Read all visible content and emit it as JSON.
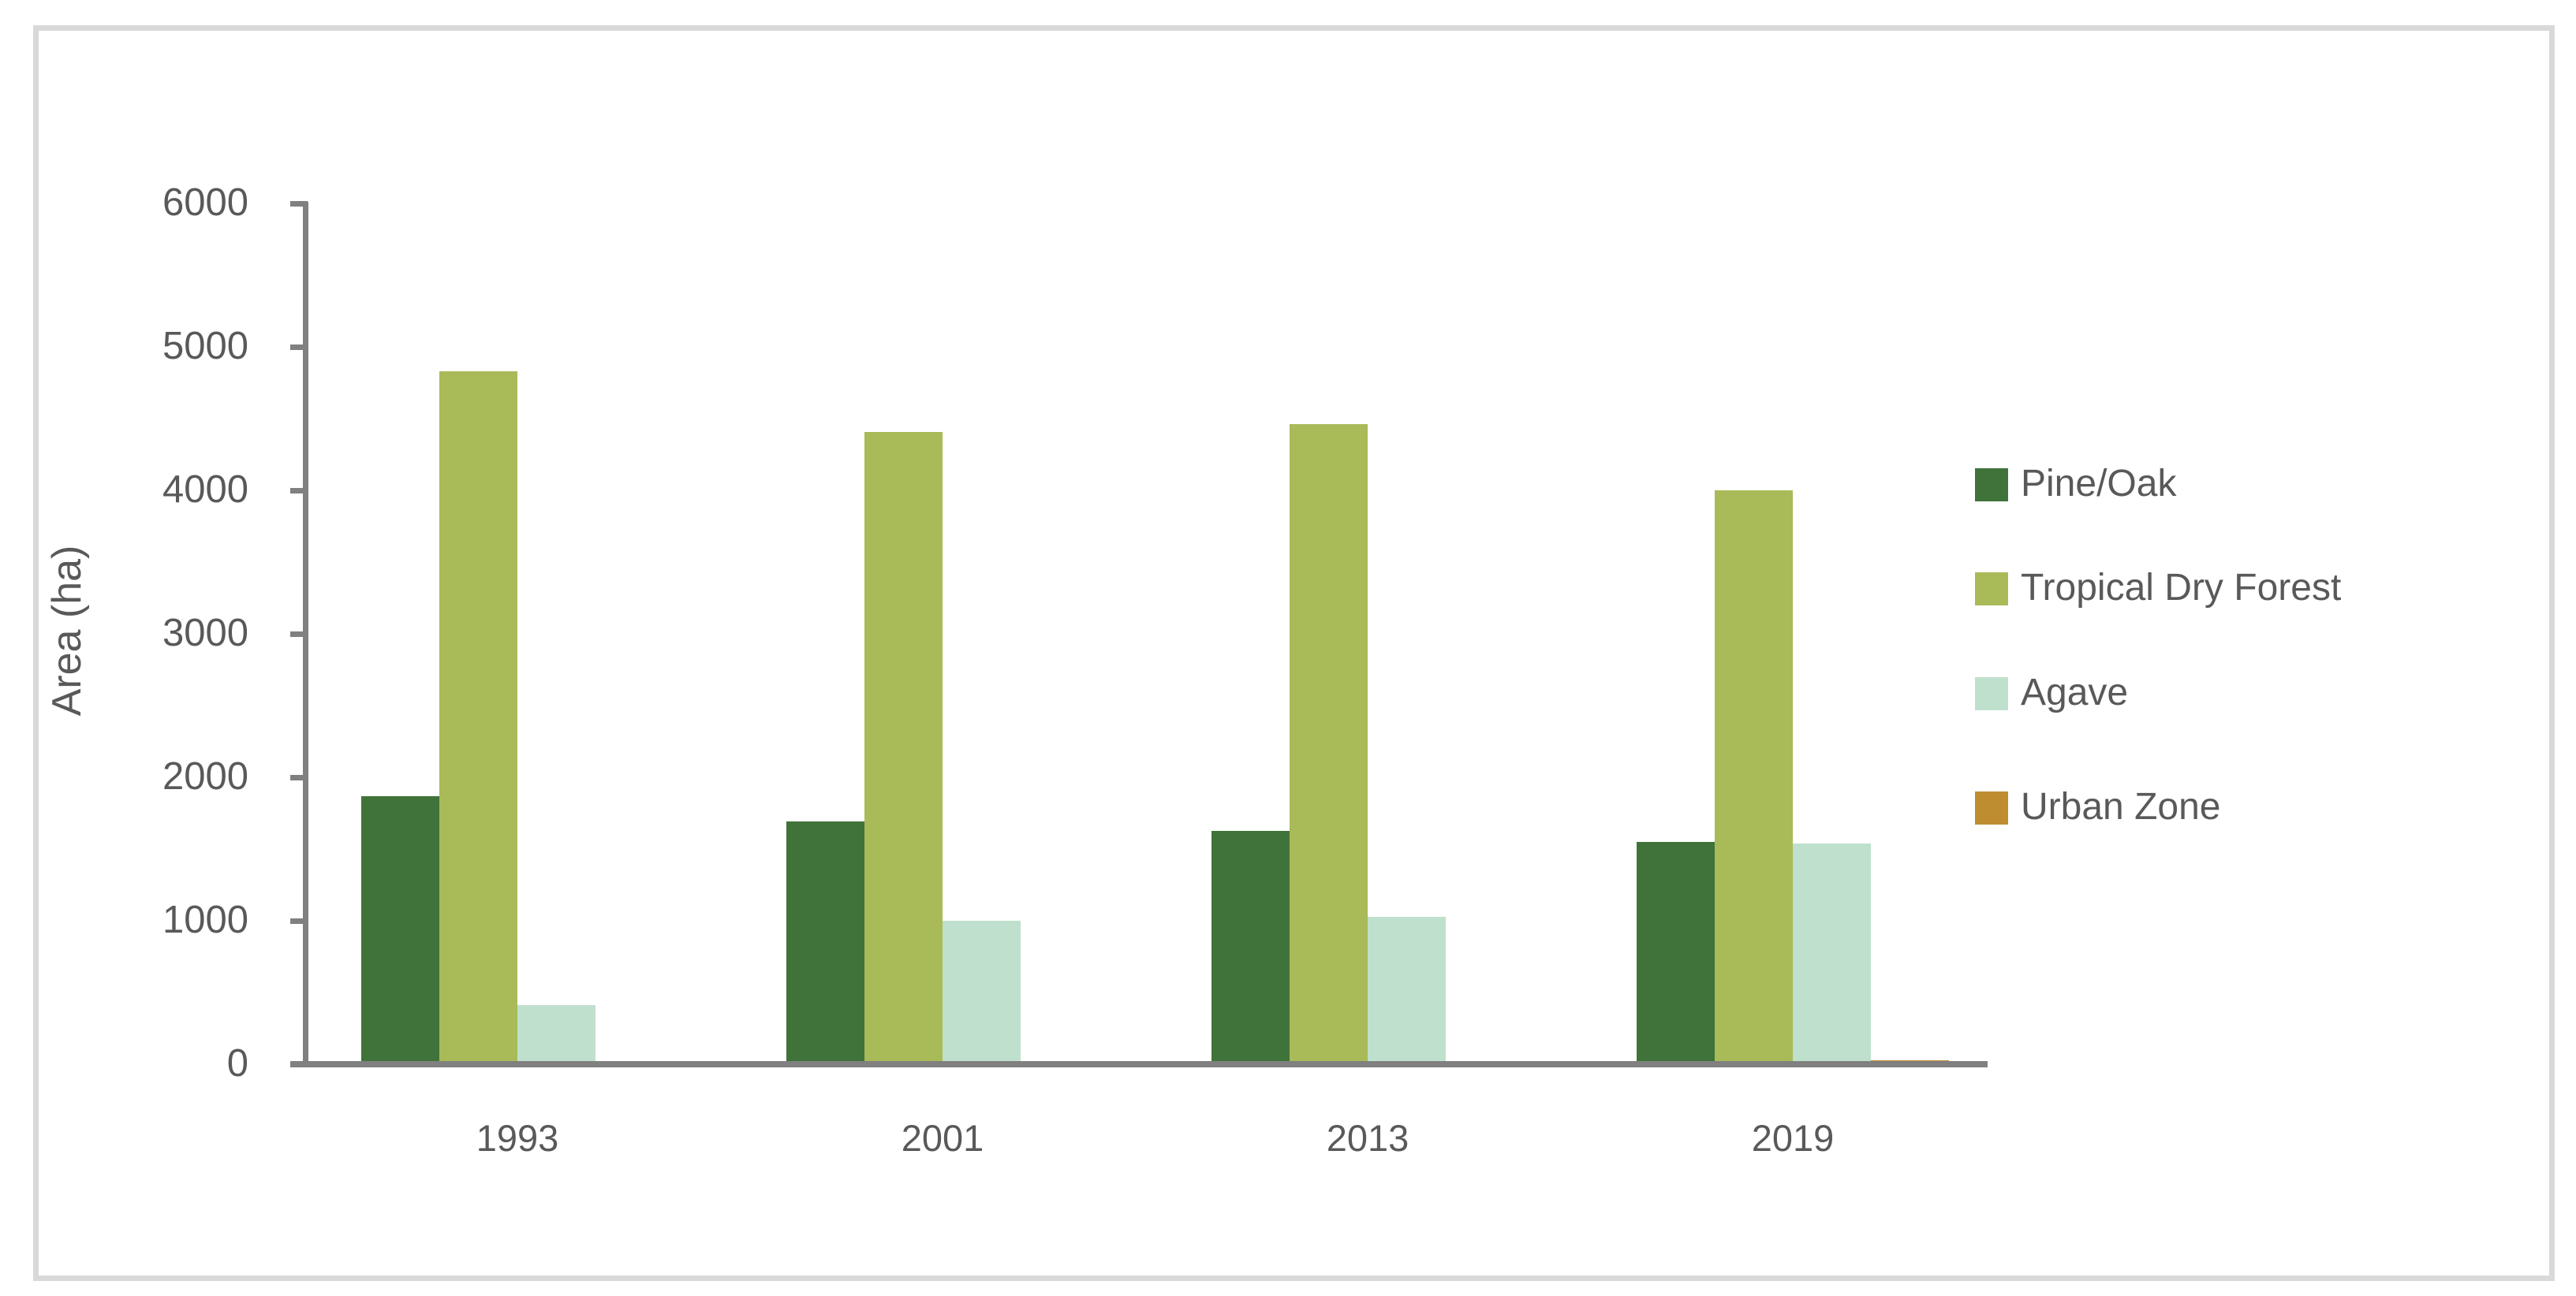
{
  "chart_data": {
    "type": "bar",
    "title": "",
    "xlabel": "",
    "ylabel": "Area (ha)",
    "categories": [
      "1993",
      "2001",
      "2013",
      "2019"
    ],
    "series": [
      {
        "name": "Pine/Oak",
        "color": "#407339",
        "values": [
          1870,
          1695,
          1625,
          1550
        ]
      },
      {
        "name": "Tropical Dry Forest",
        "color": "#A9BA58",
        "values": [
          4830,
          4405,
          4460,
          4000
        ]
      },
      {
        "name": "Agave",
        "color": "#BFE0CD",
        "values": [
          410,
          1000,
          1025,
          1540
        ]
      },
      {
        "name": "Urban Zone",
        "color": "#BD8D2F",
        "values": [
          0,
          0,
          0,
          25
        ]
      }
    ],
    "ylim": [
      0,
      6000
    ],
    "y_ticks": [
      0,
      1000,
      2000,
      3000,
      4000,
      5000,
      6000
    ],
    "grid": "off",
    "legend_position": "right"
  },
  "style": {
    "axis_color": "#808080",
    "text_color": "#595959",
    "frame_color": "#D9D9D9",
    "background": "#FFFFFF"
  }
}
